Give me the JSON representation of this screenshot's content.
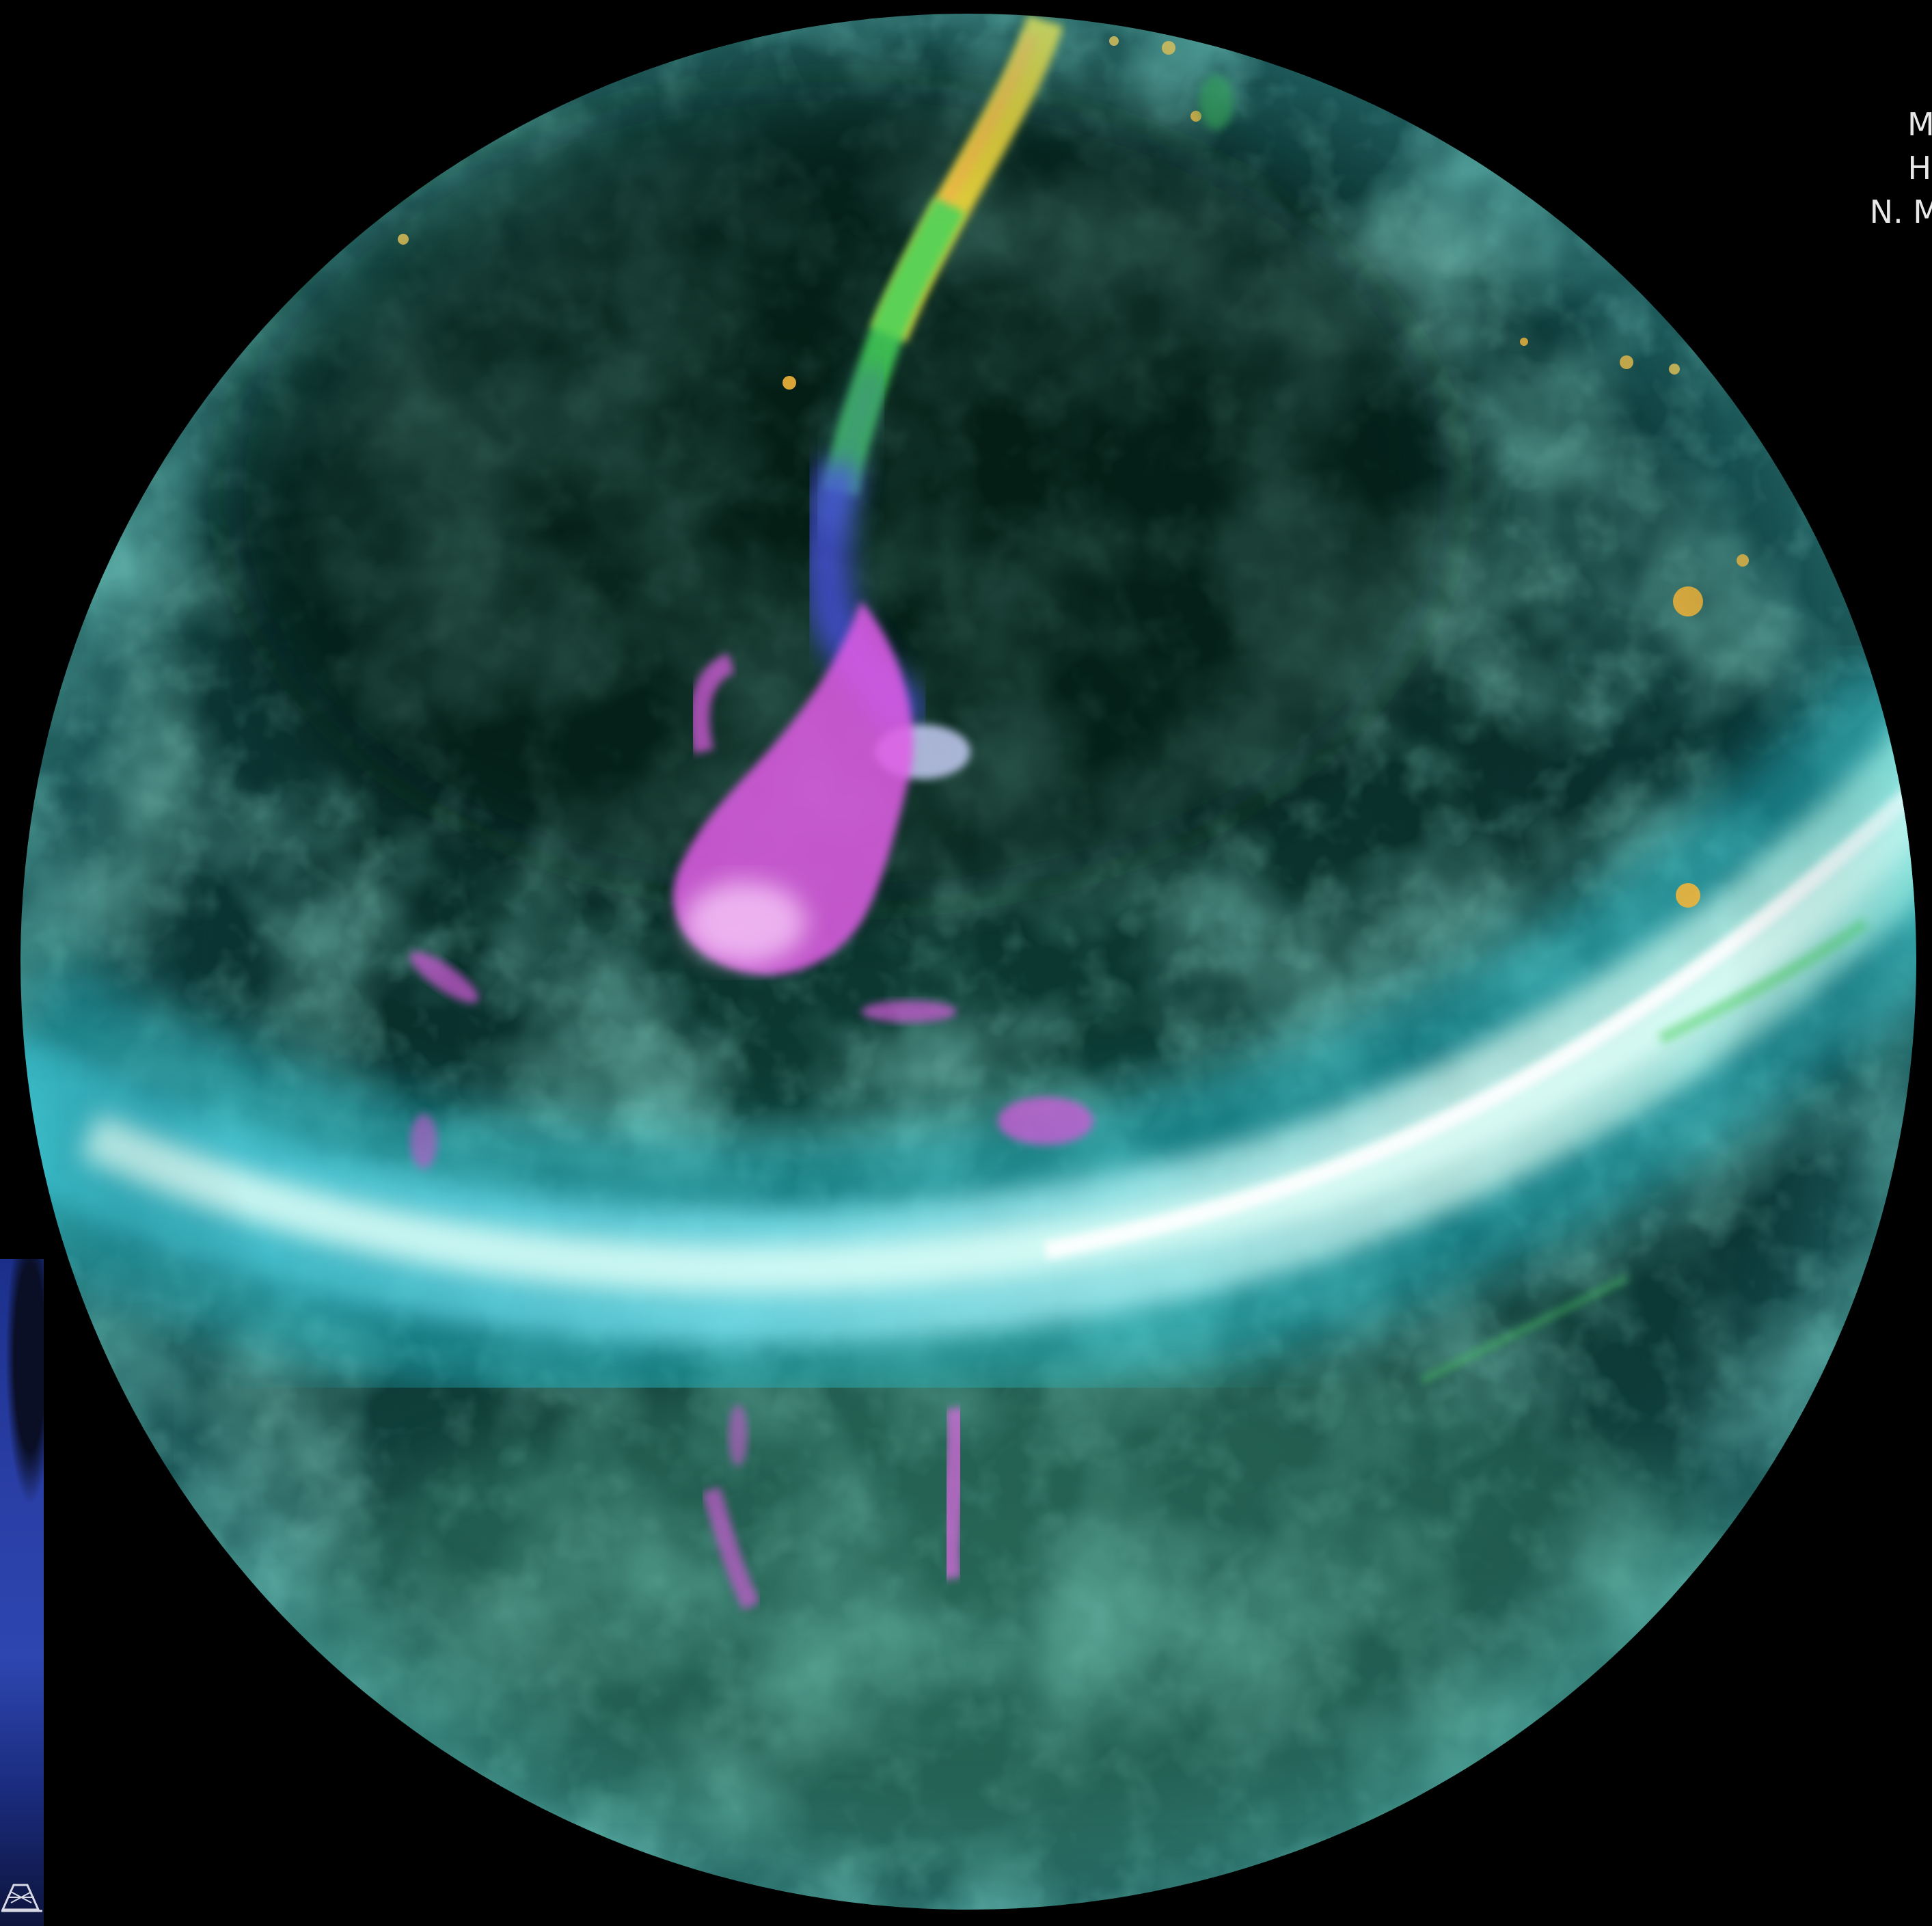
{
  "caption": {
    "line1": "Milk",
    "line2": "Hyd",
    "line3": "N. McClu"
  },
  "colors": {
    "background": "#000000",
    "galactic_plane": "#7af5ff",
    "hvc_magenta": "#e15ce6",
    "hvc_blue": "#4b52e8",
    "stream_yellow": "#e6d23a",
    "stream_green": "#49d85b",
    "diffuse_teal": "#1f7a72",
    "caption_text": "#e8e8e8"
  },
  "inset_photo": {
    "subject": "radio-telescope-at-dusk",
    "icon": "telescope-icon"
  }
}
